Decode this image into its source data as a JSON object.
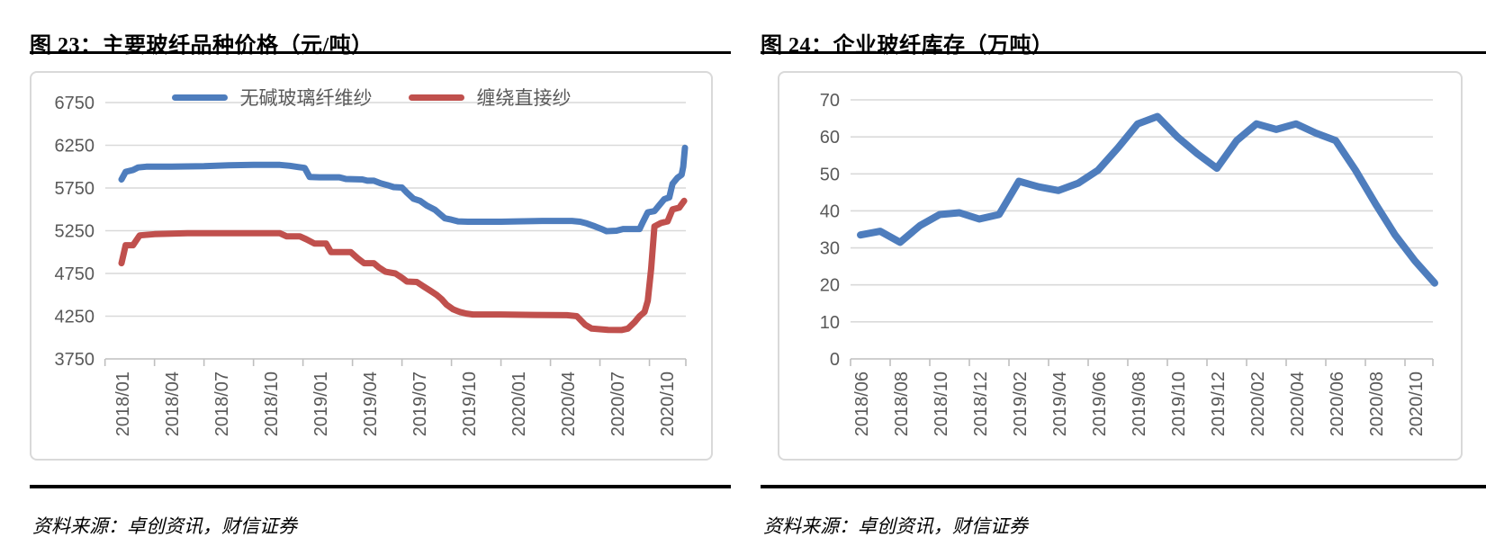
{
  "source_note": "资料来源：卓创资讯，财信证券",
  "colors": {
    "series_blue": "#4e7dbd",
    "series_red": "#c0504d",
    "gridline": "#d9d9d9",
    "axis_line": "#bfbfbf",
    "axis_text": "#595959",
    "rule_black": "#000000",
    "box_border": "#d9d9d9"
  },
  "chart_data": [
    {
      "type": "line",
      "title": "图 23：主要玻纤品种价格（元/吨）",
      "source": "资料来源：卓创资讯，财信证券",
      "x_unit": "months_since_2018_01",
      "x_tick_labels": [
        "2018/01",
        "2018/04",
        "2018/07",
        "2018/10",
        "2019/01",
        "2019/04",
        "2019/07",
        "2019/10",
        "2020/01",
        "2020/04",
        "2020/07",
        "2020/10"
      ],
      "x_tick_months": [
        0,
        3,
        6,
        9,
        12,
        15,
        18,
        21,
        24,
        27,
        30,
        33
      ],
      "ylim": [
        3750,
        6750
      ],
      "yticks": [
        3750,
        4250,
        4750,
        5250,
        5750,
        6250,
        6750
      ],
      "grid": "horizontal",
      "legend_position": "top-center",
      "series": [
        {
          "name": "无碱玻璃纤维纱",
          "color": "#4e7dbd",
          "points": [
            [
              0,
              5850
            ],
            [
              0.25,
              5940
            ],
            [
              0.7,
              5960
            ],
            [
              1,
              5990
            ],
            [
              1.5,
              6000
            ],
            [
              3,
              6000
            ],
            [
              5,
              6005
            ],
            [
              6.5,
              6015
            ],
            [
              8,
              6020
            ],
            [
              9.6,
              6020
            ],
            [
              10.2,
              6010
            ],
            [
              10.7,
              5995
            ],
            [
              11.1,
              5985
            ],
            [
              11.4,
              5880
            ],
            [
              12,
              5875
            ],
            [
              13.2,
              5875
            ],
            [
              13.6,
              5855
            ],
            [
              14.6,
              5850
            ],
            [
              14.9,
              5835
            ],
            [
              15.3,
              5835
            ],
            [
              15.7,
              5805
            ],
            [
              16.1,
              5785
            ],
            [
              16.5,
              5760
            ],
            [
              17,
              5755
            ],
            [
              17.3,
              5695
            ],
            [
              17.7,
              5625
            ],
            [
              18.1,
              5600
            ],
            [
              18.5,
              5545
            ],
            [
              19,
              5495
            ],
            [
              19.3,
              5445
            ],
            [
              19.6,
              5395
            ],
            [
              20,
              5380
            ],
            [
              20.4,
              5360
            ],
            [
              21,
              5355
            ],
            [
              23,
              5355
            ],
            [
              24,
              5360
            ],
            [
              25.5,
              5365
            ],
            [
              27.3,
              5365
            ],
            [
              27.8,
              5355
            ],
            [
              28.2,
              5335
            ],
            [
              28.7,
              5300
            ],
            [
              29.1,
              5270
            ],
            [
              29.4,
              5245
            ],
            [
              30,
              5250
            ],
            [
              30.4,
              5270
            ],
            [
              31.4,
              5270
            ],
            [
              31.6,
              5350
            ],
            [
              31.9,
              5465
            ],
            [
              32.3,
              5480
            ],
            [
              32.6,
              5550
            ],
            [
              32.9,
              5620
            ],
            [
              33.2,
              5640
            ],
            [
              33.4,
              5800
            ],
            [
              33.7,
              5870
            ],
            [
              33.95,
              5905
            ],
            [
              34.05,
              6000
            ],
            [
              34.15,
              6220
            ]
          ]
        },
        {
          "name": "缠绕直接纱",
          "color": "#c0504d",
          "points": [
            [
              0,
              4870
            ],
            [
              0.25,
              5080
            ],
            [
              0.7,
              5080
            ],
            [
              1.1,
              5195
            ],
            [
              2,
              5210
            ],
            [
              3,
              5215
            ],
            [
              4,
              5220
            ],
            [
              6,
              5220
            ],
            [
              8,
              5220
            ],
            [
              9.6,
              5220
            ],
            [
              10,
              5185
            ],
            [
              10.8,
              5185
            ],
            [
              11.2,
              5150
            ],
            [
              11.7,
              5100
            ],
            [
              12.4,
              5100
            ],
            [
              12.7,
              5000
            ],
            [
              13.9,
              5000
            ],
            [
              14.3,
              4930
            ],
            [
              14.7,
              4870
            ],
            [
              15.3,
              4870
            ],
            [
              15.6,
              4820
            ],
            [
              16,
              4770
            ],
            [
              16.6,
              4750
            ],
            [
              17,
              4700
            ],
            [
              17.3,
              4655
            ],
            [
              17.9,
              4650
            ],
            [
              18.3,
              4600
            ],
            [
              18.7,
              4550
            ],
            [
              19.1,
              4500
            ],
            [
              19.4,
              4450
            ],
            [
              19.7,
              4385
            ],
            [
              20.1,
              4330
            ],
            [
              20.5,
              4300
            ],
            [
              20.9,
              4280
            ],
            [
              21.3,
              4270
            ],
            [
              23,
              4270
            ],
            [
              25,
              4265
            ],
            [
              27,
              4262
            ],
            [
              27.6,
              4250
            ],
            [
              28.1,
              4150
            ],
            [
              28.5,
              4105
            ],
            [
              29.5,
              4090
            ],
            [
              30.3,
              4088
            ],
            [
              30.7,
              4105
            ],
            [
              31.1,
              4180
            ],
            [
              31.4,
              4250
            ],
            [
              31.7,
              4300
            ],
            [
              31.9,
              4430
            ],
            [
              32.1,
              4800
            ],
            [
              32.3,
              5300
            ],
            [
              32.7,
              5340
            ],
            [
              33.1,
              5360
            ],
            [
              33.4,
              5500
            ],
            [
              33.8,
              5520
            ],
            [
              34.1,
              5600
            ]
          ]
        }
      ]
    },
    {
      "type": "line",
      "title": "图 24：企业玻纤库存（万吨）",
      "source": "资料来源：卓创资讯，财信证券",
      "x_unit": "months_since_2018_06",
      "x_tick_labels": [
        "2018/06",
        "2018/08",
        "2018/10",
        "2018/12",
        "2019/02",
        "2019/04",
        "2019/06",
        "2019/08",
        "2019/10",
        "2019/12",
        "2020/02",
        "2020/04",
        "2020/06",
        "2020/08",
        "2020/10"
      ],
      "x_tick_months": [
        0,
        2,
        4,
        6,
        8,
        10,
        12,
        14,
        16,
        18,
        20,
        22,
        24,
        26,
        28
      ],
      "ylim": [
        0,
        70
      ],
      "yticks": [
        0,
        10,
        20,
        30,
        40,
        50,
        60,
        70
      ],
      "grid": "horizontal",
      "legend_position": "none",
      "series": [
        {
          "name": "企业玻纤库存",
          "color": "#4e7dbd",
          "points": [
            [
              0,
              33.5
            ],
            [
              1,
              34.5
            ],
            [
              2,
              31.5
            ],
            [
              3,
              36
            ],
            [
              4,
              39
            ],
            [
              5,
              39.5
            ],
            [
              6,
              37.8
            ],
            [
              7,
              39
            ],
            [
              8,
              48
            ],
            [
              9,
              46.5
            ],
            [
              10,
              45.5
            ],
            [
              11,
              47.5
            ],
            [
              12,
              51
            ],
            [
              13,
              57
            ],
            [
              14,
              63.5
            ],
            [
              15,
              65.5
            ],
            [
              16,
              60
            ],
            [
              17,
              55.5
            ],
            [
              18,
              51.5
            ],
            [
              19,
              59
            ],
            [
              20,
              63.5
            ],
            [
              21,
              62
            ],
            [
              22,
              63.5
            ],
            [
              23,
              61
            ],
            [
              24,
              59
            ],
            [
              25,
              51
            ],
            [
              26,
              42
            ],
            [
              27,
              33.5
            ],
            [
              28,
              26.5
            ],
            [
              29,
              20.5
            ]
          ]
        }
      ]
    }
  ]
}
